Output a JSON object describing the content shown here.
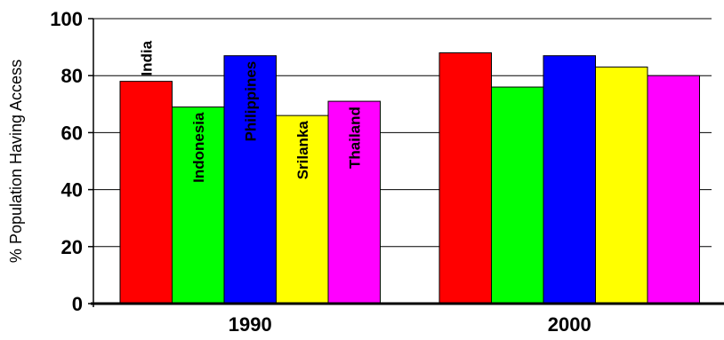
{
  "chart_data": {
    "type": "bar",
    "title": "",
    "xlabel": "",
    "ylabel": "% Population Having Access",
    "categories": [
      "1990",
      "2000"
    ],
    "series": [
      {
        "name": "India",
        "color": "#ff0000",
        "values": [
          78,
          88
        ]
      },
      {
        "name": "Indonesia",
        "color": "#00ff00",
        "values": [
          69,
          76
        ]
      },
      {
        "name": "Philippines",
        "color": "#0000ff",
        "values": [
          87,
          87
        ]
      },
      {
        "name": "Srilanka",
        "color": "#ffff00",
        "values": [
          66,
          83
        ]
      },
      {
        "name": "Thailand",
        "color": "#ff00ff",
        "values": [
          71,
          80
        ]
      }
    ],
    "ylim": [
      0,
      100
    ],
    "yticks": [
      "0",
      "20",
      "40",
      "60",
      "80",
      "100"
    ],
    "grid": true,
    "legend": "bar labels inside 1990 group"
  }
}
